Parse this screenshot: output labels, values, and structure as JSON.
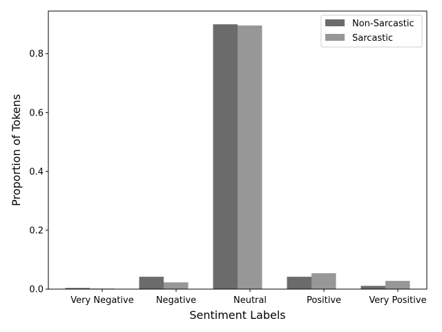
{
  "chart_data": {
    "type": "bar",
    "title": "",
    "xlabel": "Sentiment Labels",
    "ylabel": "Proportion of Tokens",
    "categories": [
      "Very Negative",
      "Negative",
      "Neutral",
      "Positive",
      "Very Positive"
    ],
    "series": [
      {
        "name": "Non-Sarcastic",
        "color": "#6b6b6b",
        "values": [
          0.004,
          0.042,
          0.9,
          0.042,
          0.011
        ]
      },
      {
        "name": "Sarcastic",
        "color": "#979797",
        "values": [
          0.002,
          0.023,
          0.896,
          0.054,
          0.028
        ]
      }
    ],
    "ylim": [
      0,
      0.945
    ],
    "yticks": [
      0.0,
      0.2,
      0.4,
      0.6,
      0.8
    ],
    "ytick_labels": [
      "0.0",
      "0.2",
      "0.4",
      "0.6",
      "0.8"
    ],
    "grid": false,
    "legend_position": "top-right"
  }
}
